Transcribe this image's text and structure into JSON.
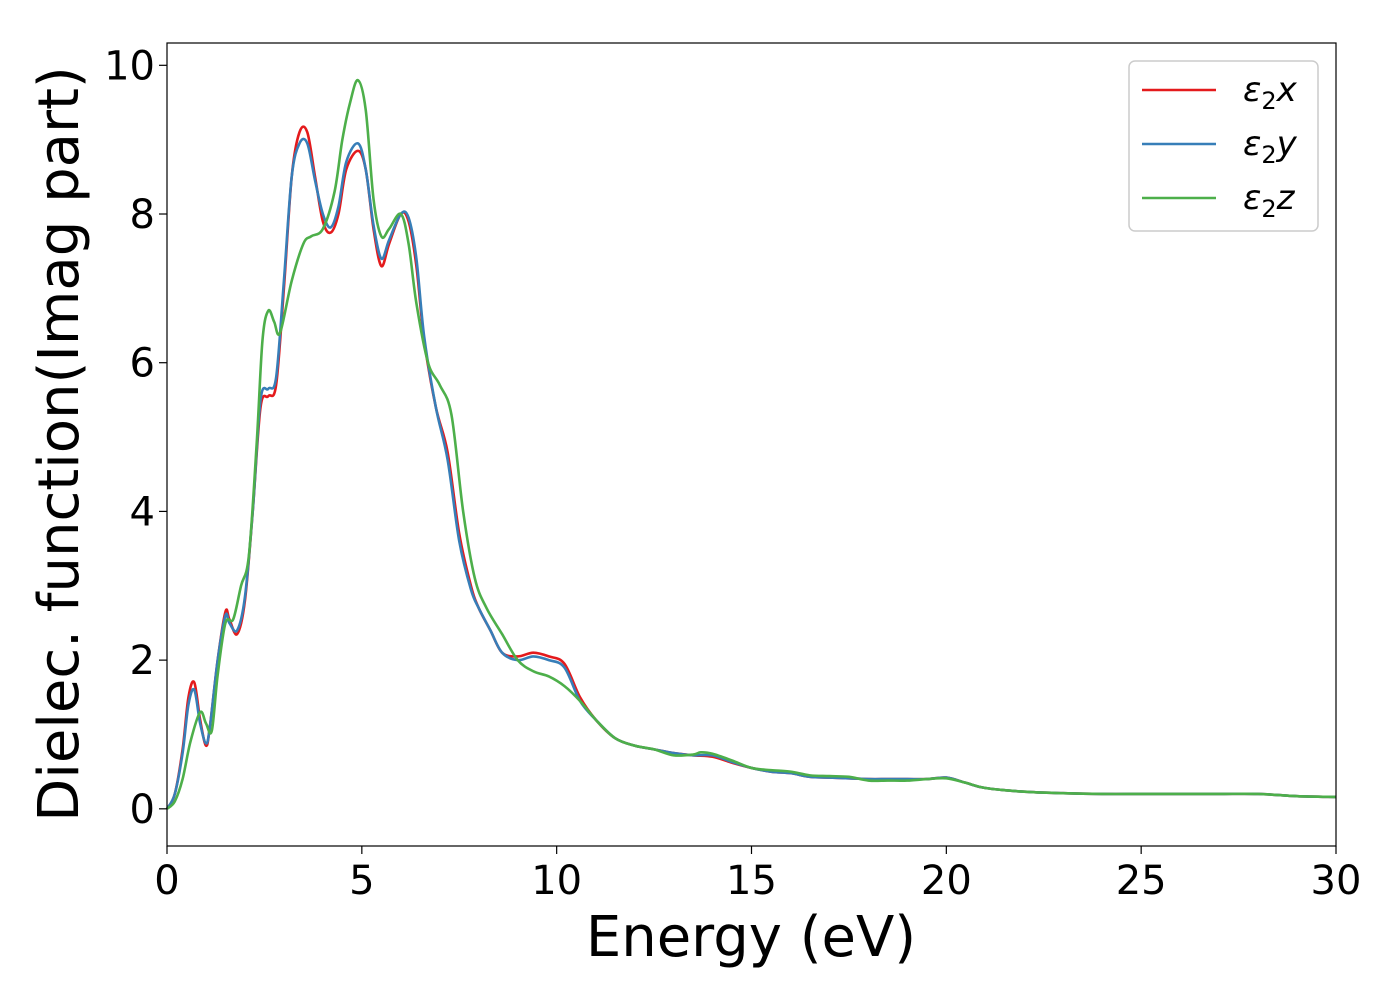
{
  "chart_data": {
    "type": "line",
    "title": "",
    "xlabel": "Energy (eV)",
    "ylabel": "Dielec. function(Imag part)",
    "xlim": [
      0,
      30
    ],
    "ylim": [
      -0.5,
      10.3
    ],
    "xticks": [
      0,
      5,
      10,
      15,
      20,
      25,
      30
    ],
    "yticks": [
      0,
      2,
      4,
      6,
      8,
      10
    ],
    "grid": false,
    "legend_position": "top-right",
    "series": [
      {
        "name": "ε₂x",
        "legend_base": "ε",
        "legend_sub": "2",
        "legend_tail": "x",
        "color": "#e41a1c",
        "x": [
          0,
          0.2,
          0.4,
          0.55,
          0.7,
          0.85,
          1.0,
          1.1,
          1.3,
          1.5,
          1.6,
          1.8,
          2.0,
          2.2,
          2.4,
          2.6,
          2.8,
          3.0,
          3.2,
          3.4,
          3.6,
          3.8,
          4.0,
          4.2,
          4.4,
          4.6,
          4.9,
          5.1,
          5.3,
          5.5,
          5.7,
          6.0,
          6.2,
          6.4,
          6.6,
          6.9,
          7.2,
          7.5,
          7.8,
          8.0,
          8.3,
          8.6,
          9.0,
          9.4,
          9.8,
          10.2,
          10.6,
          11.0,
          11.5,
          12.0,
          12.5,
          13.0,
          13.5,
          14.0,
          14.5,
          15.0,
          15.5,
          16.0,
          16.5,
          17.0,
          17.5,
          18.0,
          18.5,
          19.0,
          19.5,
          20.0,
          20.5,
          21.0,
          22.0,
          23.0,
          24.0,
          25.0,
          26.0,
          27.0,
          28.0,
          29.0,
          30.0
        ],
        "values": [
          0.0,
          0.2,
          0.8,
          1.5,
          1.7,
          1.2,
          0.85,
          1.1,
          2.0,
          2.65,
          2.55,
          2.35,
          2.8,
          4.0,
          5.4,
          5.55,
          5.7,
          7.0,
          8.5,
          9.1,
          9.1,
          8.5,
          7.9,
          7.75,
          8.0,
          8.6,
          8.85,
          8.6,
          7.8,
          7.3,
          7.6,
          8.0,
          7.9,
          7.3,
          6.3,
          5.4,
          4.8,
          3.7,
          3.0,
          2.7,
          2.4,
          2.1,
          2.05,
          2.1,
          2.05,
          1.95,
          1.5,
          1.2,
          0.95,
          0.85,
          0.8,
          0.75,
          0.72,
          0.7,
          0.62,
          0.55,
          0.5,
          0.48,
          0.43,
          0.42,
          0.41,
          0.4,
          0.4,
          0.4,
          0.4,
          0.42,
          0.35,
          0.28,
          0.23,
          0.21,
          0.2,
          0.2,
          0.2,
          0.2,
          0.2,
          0.17,
          0.16
        ]
      },
      {
        "name": "ε₂y",
        "legend_base": "ε",
        "legend_sub": "2",
        "legend_tail": "y",
        "color": "#377eb8",
        "x": [
          0,
          0.2,
          0.4,
          0.55,
          0.7,
          0.85,
          1.0,
          1.1,
          1.3,
          1.5,
          1.6,
          1.8,
          2.0,
          2.2,
          2.4,
          2.6,
          2.8,
          3.0,
          3.2,
          3.4,
          3.6,
          3.8,
          4.0,
          4.2,
          4.4,
          4.6,
          4.9,
          5.1,
          5.3,
          5.5,
          5.7,
          6.0,
          6.2,
          6.4,
          6.6,
          6.9,
          7.2,
          7.5,
          7.8,
          8.0,
          8.3,
          8.6,
          9.0,
          9.4,
          9.8,
          10.2,
          10.6,
          11.0,
          11.5,
          12.0,
          12.5,
          13.0,
          13.5,
          14.0,
          14.5,
          15.0,
          15.5,
          16.0,
          16.5,
          17.0,
          17.5,
          18.0,
          18.5,
          19.0,
          19.5,
          20.0,
          20.5,
          21.0,
          22.0,
          23.0,
          24.0,
          25.0,
          26.0,
          27.0,
          28.0,
          29.0,
          30.0
        ],
        "values": [
          0.0,
          0.2,
          0.75,
          1.4,
          1.6,
          1.15,
          0.88,
          1.1,
          2.0,
          2.6,
          2.5,
          2.4,
          2.85,
          4.0,
          5.5,
          5.65,
          5.8,
          7.1,
          8.5,
          8.95,
          8.95,
          8.45,
          8.0,
          7.82,
          8.1,
          8.7,
          8.95,
          8.6,
          7.85,
          7.4,
          7.65,
          8.0,
          7.95,
          7.4,
          6.35,
          5.4,
          4.7,
          3.6,
          2.95,
          2.7,
          2.4,
          2.1,
          2.0,
          2.05,
          2.0,
          1.9,
          1.45,
          1.2,
          0.95,
          0.85,
          0.8,
          0.75,
          0.72,
          0.72,
          0.63,
          0.55,
          0.5,
          0.48,
          0.43,
          0.42,
          0.41,
          0.4,
          0.4,
          0.4,
          0.4,
          0.42,
          0.35,
          0.28,
          0.23,
          0.21,
          0.2,
          0.2,
          0.2,
          0.2,
          0.2,
          0.17,
          0.16
        ]
      },
      {
        "name": "ε₂z",
        "legend_base": "ε",
        "legend_sub": "2",
        "legend_tail": "z",
        "color": "#4daf4a",
        "x": [
          0,
          0.2,
          0.4,
          0.6,
          0.85,
          1.0,
          1.15,
          1.3,
          1.5,
          1.7,
          1.9,
          2.1,
          2.3,
          2.45,
          2.6,
          2.75,
          2.9,
          3.2,
          3.5,
          3.7,
          4.0,
          4.3,
          4.5,
          4.7,
          4.9,
          5.1,
          5.3,
          5.5,
          5.7,
          6.0,
          6.2,
          6.4,
          6.7,
          7.0,
          7.3,
          7.6,
          7.9,
          8.2,
          8.6,
          9.0,
          9.4,
          9.8,
          10.2,
          10.6,
          11.0,
          11.5,
          12.0,
          12.5,
          13.0,
          13.5,
          13.7,
          14.0,
          14.5,
          15.0,
          15.5,
          16.0,
          16.5,
          17.0,
          17.5,
          18.0,
          18.5,
          19.0,
          19.5,
          20.0,
          20.5,
          21.0,
          22.0,
          23.0,
          24.0,
          25.0,
          26.0,
          27.0,
          28.0,
          29.0,
          30.0
        ],
        "values": [
          0.0,
          0.1,
          0.4,
          0.9,
          1.3,
          1.15,
          1.05,
          1.8,
          2.5,
          2.55,
          3.0,
          3.4,
          4.9,
          6.3,
          6.7,
          6.55,
          6.4,
          7.1,
          7.6,
          7.7,
          7.8,
          8.3,
          9.0,
          9.5,
          9.8,
          9.4,
          8.2,
          7.7,
          7.8,
          8.0,
          7.6,
          6.8,
          6.0,
          5.7,
          5.3,
          4.0,
          3.1,
          2.7,
          2.35,
          2.0,
          1.85,
          1.78,
          1.65,
          1.45,
          1.2,
          0.95,
          0.85,
          0.8,
          0.72,
          0.73,
          0.76,
          0.74,
          0.65,
          0.55,
          0.52,
          0.5,
          0.45,
          0.44,
          0.43,
          0.38,
          0.38,
          0.38,
          0.4,
          0.41,
          0.35,
          0.28,
          0.23,
          0.21,
          0.2,
          0.2,
          0.2,
          0.2,
          0.2,
          0.17,
          0.16
        ]
      }
    ]
  }
}
